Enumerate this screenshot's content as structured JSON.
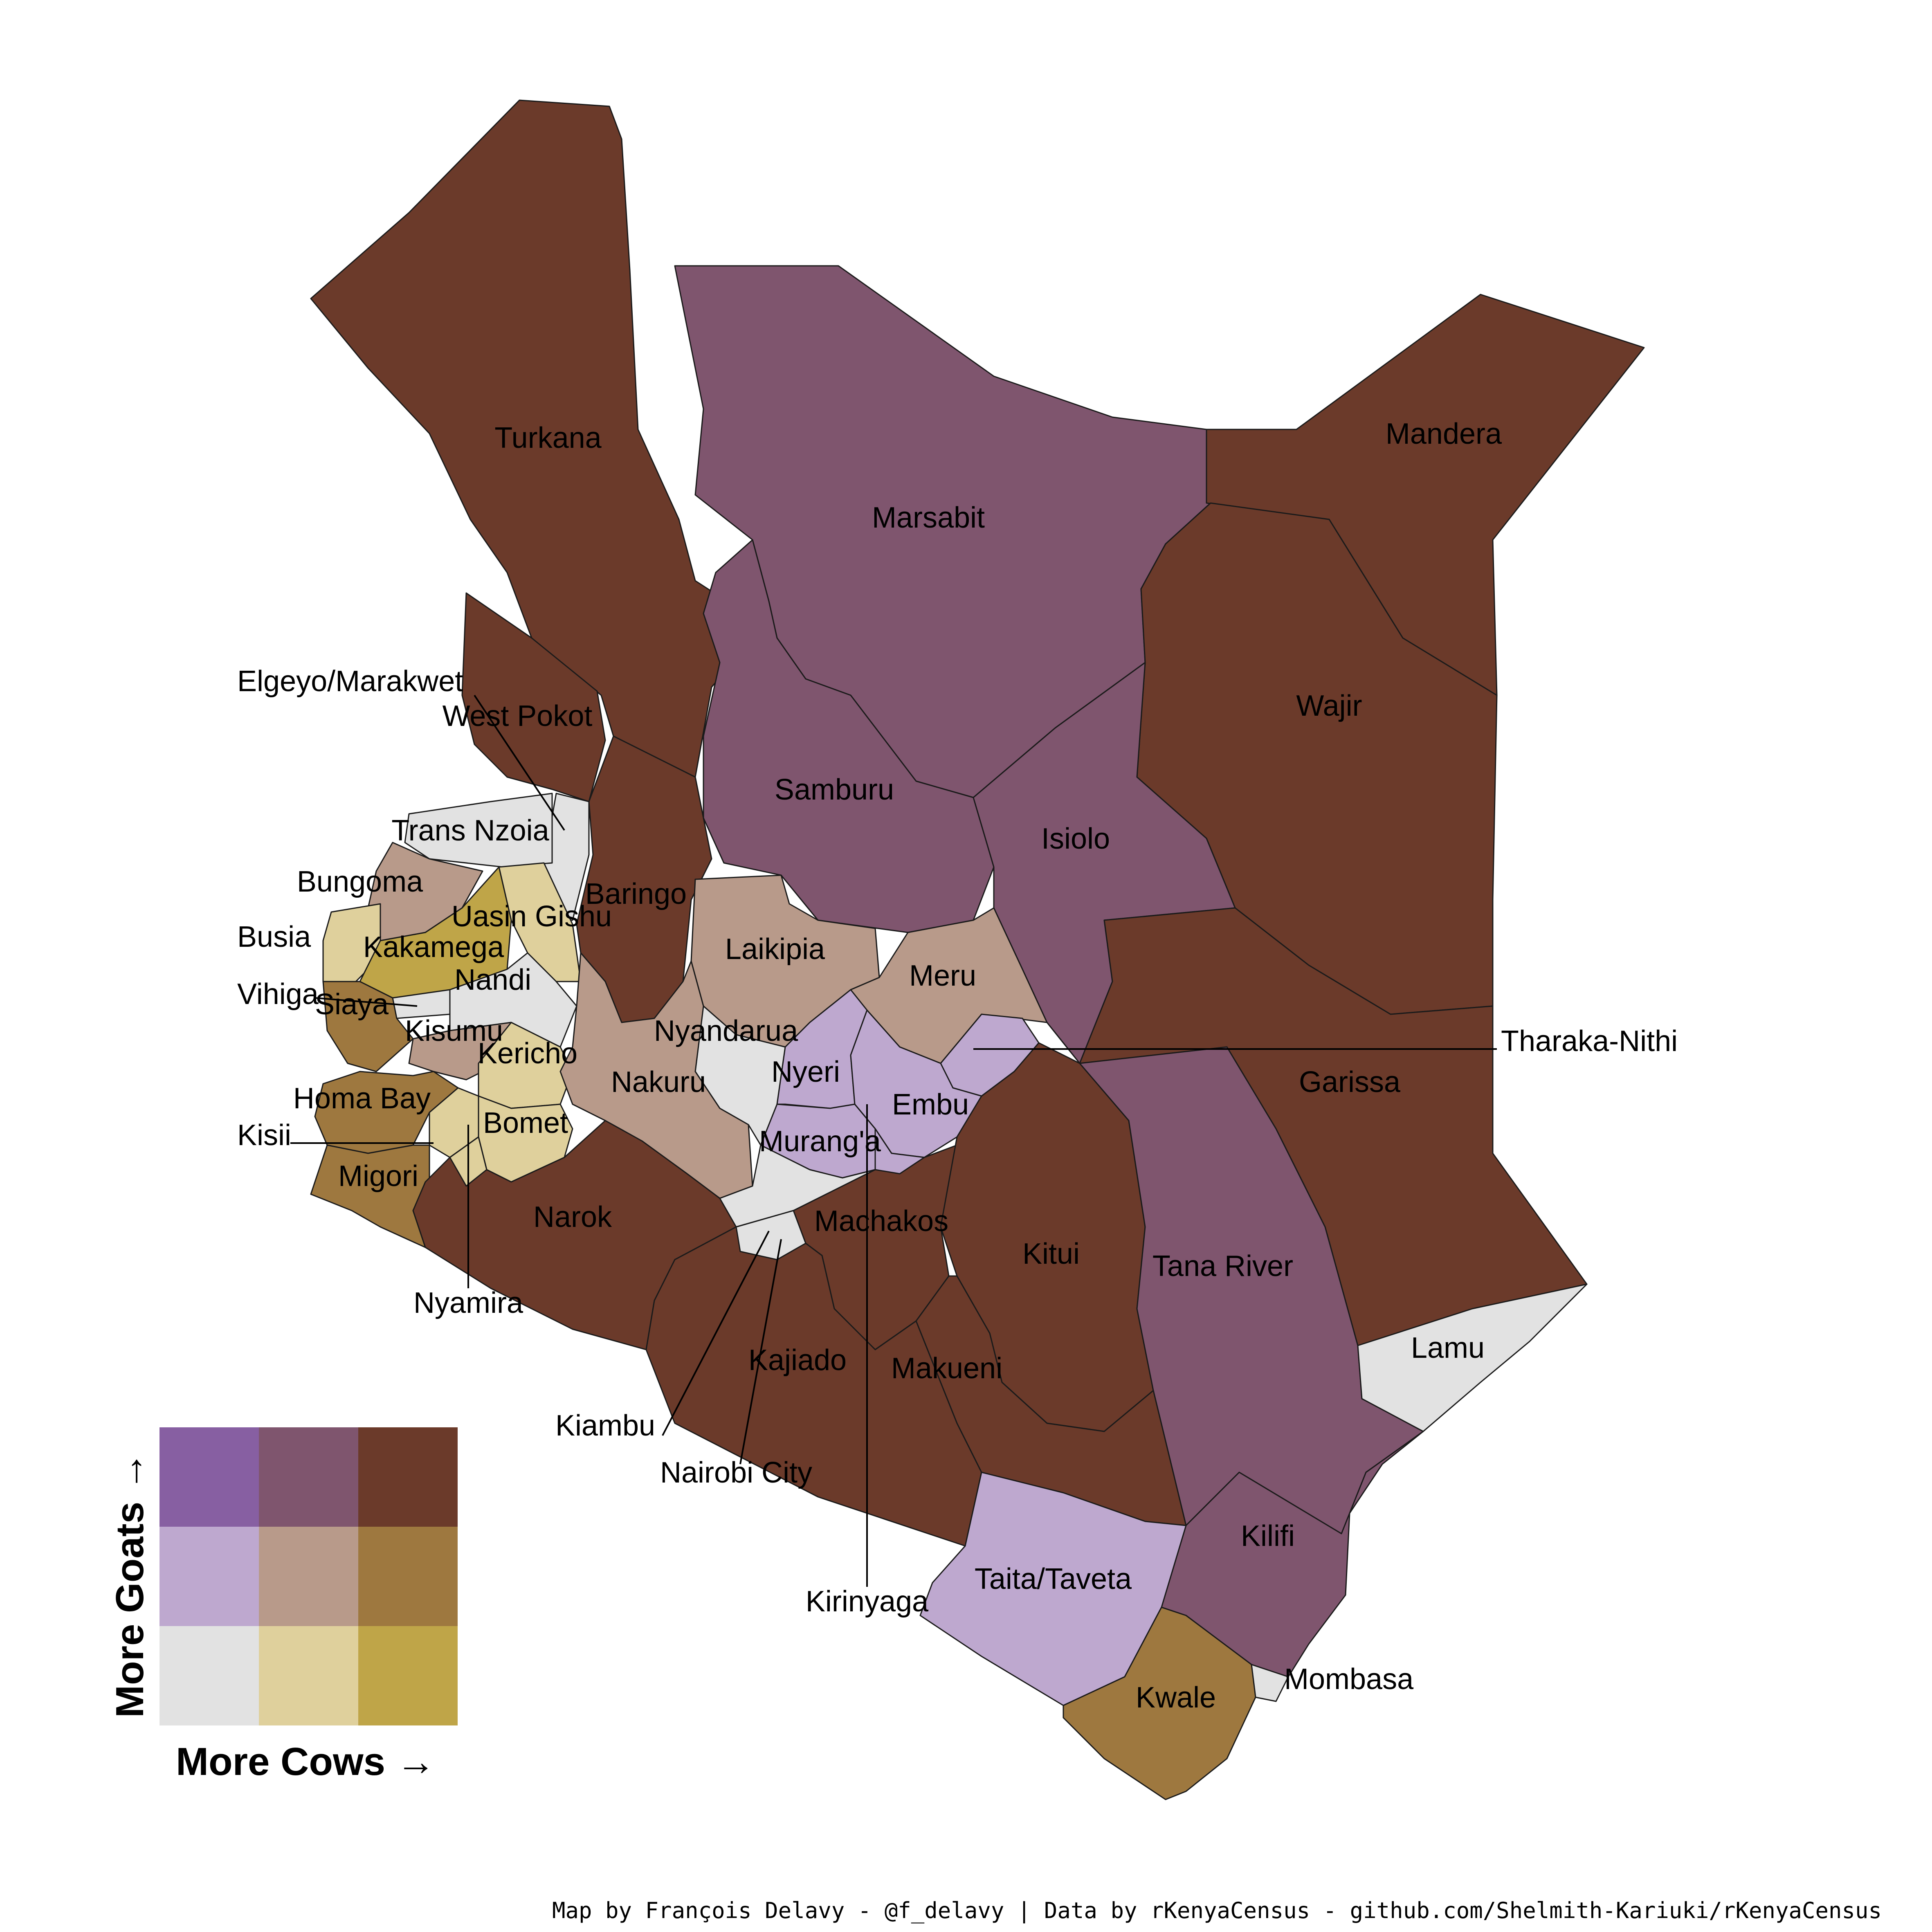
{
  "colors": {
    "LL": "#e2e2e2",
    "LM": "#dfd09c",
    "LH": "#bfa548",
    "ML": "#bea8cf",
    "MM": "#b89a8a",
    "MH": "#9e783f",
    "HL": "#875fa2",
    "HM": "#7f556e",
    "HH": "#6b3a2a"
  },
  "legend": {
    "y_label": "More Goats →",
    "x_label": "More Cows →",
    "grid": [
      [
        "HL",
        "HM",
        "HH"
      ],
      [
        "ML",
        "MM",
        "MH"
      ],
      [
        "LL",
        "LM",
        "LH"
      ]
    ]
  },
  "counties": [
    {
      "name": "Turkana",
      "class": "HH"
    },
    {
      "name": "Marsabit",
      "class": "HM"
    },
    {
      "name": "Mandera",
      "class": "HH"
    },
    {
      "name": "Wajir",
      "class": "HH"
    },
    {
      "name": "Samburu",
      "class": "HM"
    },
    {
      "name": "Isiolo",
      "class": "HM"
    },
    {
      "name": "West Pokot",
      "class": "HH"
    },
    {
      "name": "Elgeyo/Marakwet",
      "class": "LL"
    },
    {
      "name": "Trans Nzoia",
      "class": "LL"
    },
    {
      "name": "Baringo",
      "class": "HH"
    },
    {
      "name": "Bungoma",
      "class": "MM"
    },
    {
      "name": "Uasin Gishu",
      "class": "LM"
    },
    {
      "name": "Busia",
      "class": "LM"
    },
    {
      "name": "Kakamega",
      "class": "LH"
    },
    {
      "name": "Nandi",
      "class": "LL"
    },
    {
      "name": "Vihiga",
      "class": "LL"
    },
    {
      "name": "Siaya",
      "class": "MH"
    },
    {
      "name": "Laikipia",
      "class": "MM"
    },
    {
      "name": "Meru",
      "class": "MM"
    },
    {
      "name": "Tharaka-Nithi",
      "class": "ML"
    },
    {
      "name": "Kisumu",
      "class": "MM"
    },
    {
      "name": "Kericho",
      "class": "LM"
    },
    {
      "name": "Nyandarua",
      "class": "LL"
    },
    {
      "name": "Nyeri",
      "class": "ML"
    },
    {
      "name": "Nakuru",
      "class": "MM"
    },
    {
      "name": "Homa Bay",
      "class": "MH"
    },
    {
      "name": "Bomet",
      "class": "LM"
    },
    {
      "name": "Embu",
      "class": "ML"
    },
    {
      "name": "Garissa",
      "class": "HH"
    },
    {
      "name": "Kisii",
      "class": "LM"
    },
    {
      "name": "Murang'a",
      "class": "ML"
    },
    {
      "name": "Migori",
      "class": "MH"
    },
    {
      "name": "Narok",
      "class": "HH"
    },
    {
      "name": "Machakos",
      "class": "HH"
    },
    {
      "name": "Kitui",
      "class": "HH"
    },
    {
      "name": "Tana River",
      "class": "HM"
    },
    {
      "name": "Nyamira",
      "class": "LM"
    },
    {
      "name": "Kajiado",
      "class": "HH"
    },
    {
      "name": "Makueni",
      "class": "HH"
    },
    {
      "name": "Lamu",
      "class": "LL"
    },
    {
      "name": "Kiambu",
      "class": "LL"
    },
    {
      "name": "Nairobi City",
      "class": "LL"
    },
    {
      "name": "Kilifi",
      "class": "HM"
    },
    {
      "name": "Taita/Taveta",
      "class": "ML"
    },
    {
      "name": "Kirinyaga",
      "class": "ML"
    },
    {
      "name": "Mombasa",
      "class": "LL"
    },
    {
      "name": "Kwale",
      "class": "MH"
    }
  ],
  "credit": "Map by François Delavy - @f_delavy | Data by rKenyaCensus - github.com/Shelmith-Kariuki/rKenyaCensus"
}
